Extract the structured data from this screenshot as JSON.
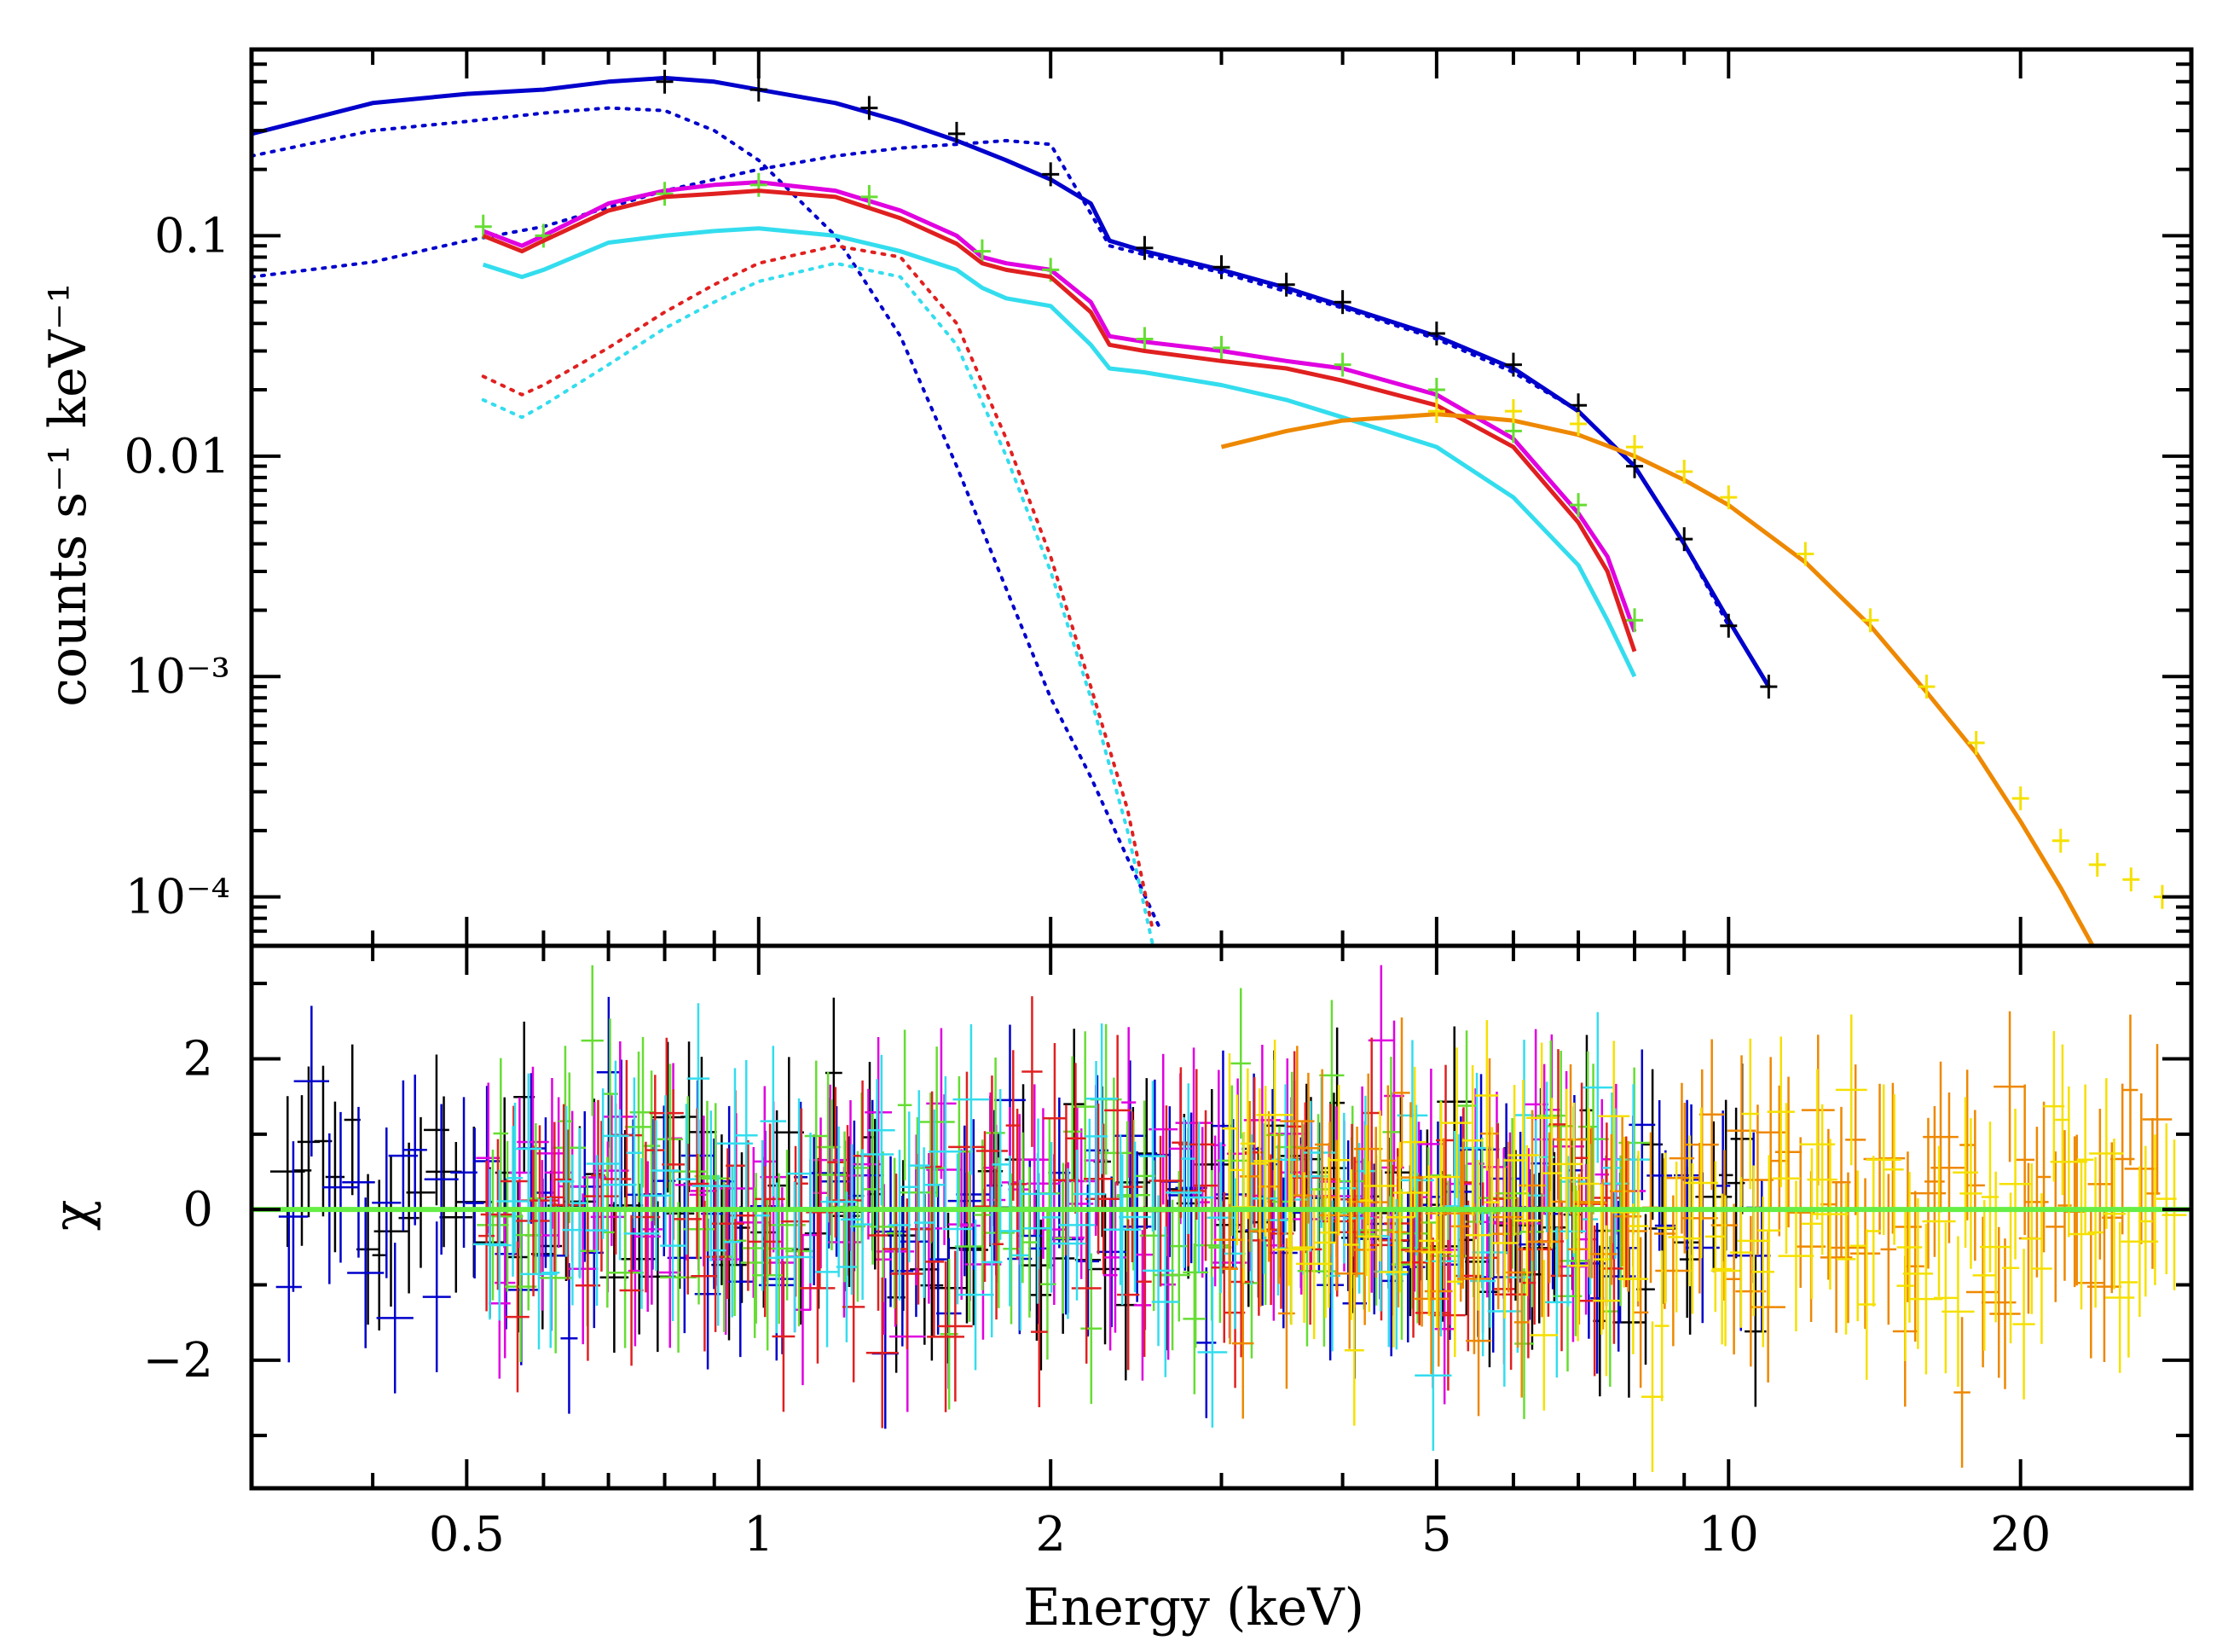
{
  "chart_data": [
    {
      "panel": "spectrum",
      "type": "line",
      "yscale": "log",
      "xscale": "log",
      "ylabel": "counts s⁻¹ keV⁻¹",
      "xlabel": "Energy (keV)",
      "xlim": [
        0.3,
        30
      ],
      "ylim": [
        6e-05,
        0.7
      ],
      "y_tick_values": [
        0.1,
        0.01,
        0.001,
        0.0001
      ],
      "y_tick_labels": [
        "0.1",
        "0.01",
        "10⁻³",
        "10⁻⁴"
      ],
      "x_tick_values": [
        0.5,
        1,
        2,
        5,
        10,
        20
      ],
      "x_tick_labels": [
        "0.5",
        "1",
        "2",
        "5",
        "10",
        "20"
      ],
      "series": [
        {
          "name": "blue model",
          "color": "#0000cc",
          "style": "solid",
          "x": [
            0.3,
            0.4,
            0.5,
            0.6,
            0.7,
            0.8,
            0.9,
            1.0,
            1.2,
            1.4,
            1.6,
            1.8,
            2.0,
            2.2,
            2.3,
            2.5,
            3.0,
            3.5,
            4.0,
            5.0,
            6.0,
            7.0,
            8.0,
            9.0,
            10.0,
            11.0
          ],
          "y": [
            0.29,
            0.4,
            0.44,
            0.46,
            0.5,
            0.52,
            0.5,
            0.46,
            0.4,
            0.33,
            0.27,
            0.22,
            0.18,
            0.14,
            0.095,
            0.085,
            0.07,
            0.058,
            0.048,
            0.035,
            0.025,
            0.016,
            0.009,
            0.004,
            0.0018,
            0.0009
          ]
        },
        {
          "name": "black data",
          "color": "#000000",
          "style": "points",
          "x": [
            0.8,
            1.0,
            1.3,
            1.6,
            2.0,
            2.5,
            3.0,
            3.5,
            4.0,
            5.0,
            6.0,
            7.0,
            8.0,
            9.0,
            10.0,
            11.0
          ],
          "y": [
            0.5,
            0.46,
            0.38,
            0.29,
            0.19,
            0.088,
            0.072,
            0.06,
            0.05,
            0.036,
            0.026,
            0.017,
            0.009,
            0.0042,
            0.0017,
            0.0009
          ]
        },
        {
          "name": "blue component 1",
          "color": "#0000cc",
          "style": "dotted",
          "x": [
            0.3,
            0.4,
            0.5,
            0.6,
            0.7,
            0.8,
            0.9,
            1.0,
            1.2,
            1.4,
            1.6,
            1.8,
            2.0,
            2.2,
            2.4,
            2.6
          ],
          "y": [
            0.23,
            0.3,
            0.33,
            0.36,
            0.38,
            0.37,
            0.3,
            0.22,
            0.1,
            0.035,
            0.009,
            0.0025,
            0.0008,
            0.00035,
            0.00015,
            7e-05
          ]
        },
        {
          "name": "blue component 2",
          "color": "#0000cc",
          "style": "dotted",
          "x": [
            0.3,
            0.4,
            0.5,
            0.6,
            0.8,
            1.0,
            1.2,
            1.4,
            1.6,
            1.8,
            2.0,
            2.3,
            2.5,
            3.0,
            4.0,
            5.0,
            6.0,
            7.0,
            8.0,
            9.0,
            10.0
          ],
          "y": [
            0.065,
            0.076,
            0.095,
            0.11,
            0.16,
            0.2,
            0.23,
            0.25,
            0.26,
            0.27,
            0.26,
            0.09,
            0.082,
            0.068,
            0.047,
            0.034,
            0.024,
            0.016,
            0.009,
            0.004,
            0.0017
          ]
        },
        {
          "name": "magenta model",
          "color": "#e000e0",
          "style": "solid",
          "x": [
            0.52,
            0.57,
            0.6,
            0.7,
            0.8,
            0.9,
            1.0,
            1.2,
            1.4,
            1.6,
            1.7,
            1.8,
            2.0,
            2.2,
            2.3,
            2.5,
            3.0,
            3.5,
            4.0,
            5.0,
            6.0,
            7.0,
            7.5,
            8.0
          ],
          "y": [
            0.105,
            0.09,
            0.1,
            0.14,
            0.16,
            0.17,
            0.175,
            0.16,
            0.13,
            0.1,
            0.08,
            0.075,
            0.07,
            0.05,
            0.035,
            0.033,
            0.03,
            0.027,
            0.025,
            0.019,
            0.012,
            0.0055,
            0.0035,
            0.0016
          ]
        },
        {
          "name": "green data",
          "color": "#66dd33",
          "style": "points",
          "x": [
            0.52,
            0.6,
            0.8,
            1.0,
            1.3,
            1.7,
            2.0,
            2.5,
            3.0,
            4.0,
            5.0,
            6.0,
            7.0,
            8.0
          ],
          "y": [
            0.11,
            0.1,
            0.155,
            0.17,
            0.15,
            0.085,
            0.07,
            0.034,
            0.031,
            0.026,
            0.02,
            0.013,
            0.006,
            0.0018
          ]
        },
        {
          "name": "red model",
          "color": "#e02020",
          "style": "solid",
          "x": [
            0.52,
            0.57,
            0.6,
            0.7,
            0.8,
            0.9,
            1.0,
            1.2,
            1.4,
            1.6,
            1.7,
            1.8,
            2.0,
            2.2,
            2.3,
            2.5,
            3.0,
            3.5,
            4.0,
            5.0,
            6.0,
            7.0,
            7.5,
            8.0
          ],
          "y": [
            0.1,
            0.085,
            0.095,
            0.13,
            0.15,
            0.155,
            0.16,
            0.15,
            0.12,
            0.092,
            0.075,
            0.07,
            0.065,
            0.045,
            0.032,
            0.03,
            0.027,
            0.025,
            0.022,
            0.017,
            0.011,
            0.005,
            0.003,
            0.0013
          ]
        },
        {
          "name": "red component",
          "color": "#e02020",
          "style": "dotted",
          "x": [
            0.52,
            0.57,
            0.6,
            0.7,
            0.8,
            0.9,
            1.0,
            1.2,
            1.4,
            1.6,
            1.8,
            2.0,
            2.2,
            2.4,
            2.55
          ],
          "y": [
            0.023,
            0.019,
            0.021,
            0.031,
            0.045,
            0.06,
            0.075,
            0.09,
            0.08,
            0.04,
            0.012,
            0.0035,
            0.0009,
            0.00025,
            7e-05
          ]
        },
        {
          "name": "cyan model",
          "color": "#33ddee",
          "style": "solid",
          "x": [
            0.52,
            0.57,
            0.6,
            0.7,
            0.8,
            0.9,
            1.0,
            1.2,
            1.4,
            1.6,
            1.7,
            1.8,
            2.0,
            2.2,
            2.3,
            2.5,
            3.0,
            3.5,
            4.0,
            5.0,
            6.0,
            7.0,
            7.5,
            8.0
          ],
          "y": [
            0.074,
            0.065,
            0.07,
            0.093,
            0.1,
            0.105,
            0.108,
            0.1,
            0.085,
            0.07,
            0.058,
            0.052,
            0.048,
            0.032,
            0.025,
            0.024,
            0.021,
            0.018,
            0.015,
            0.011,
            0.0065,
            0.0032,
            0.0018,
            0.001
          ]
        },
        {
          "name": "cyan component",
          "color": "#33ddee",
          "style": "dotted",
          "x": [
            0.52,
            0.57,
            0.6,
            0.7,
            0.8,
            0.9,
            1.0,
            1.2,
            1.4,
            1.6,
            1.8,
            2.0,
            2.2,
            2.4,
            2.55
          ],
          "y": [
            0.018,
            0.015,
            0.017,
            0.026,
            0.038,
            0.05,
            0.062,
            0.075,
            0.065,
            0.032,
            0.01,
            0.003,
            0.0008,
            0.0002,
            6e-05
          ]
        },
        {
          "name": "orange model",
          "color": "#ee8800",
          "style": "solid",
          "x": [
            3.0,
            3.5,
            4.0,
            4.5,
            5.0,
            5.5,
            6.0,
            7.0,
            8.0,
            9.0,
            10.0,
            12.0,
            14.0,
            16.0,
            18.0,
            20.0,
            22.0,
            24.0
          ],
          "y": [
            0.011,
            0.013,
            0.0145,
            0.015,
            0.0155,
            0.015,
            0.0145,
            0.0125,
            0.01,
            0.0078,
            0.006,
            0.0033,
            0.0017,
            0.00085,
            0.00045,
            0.00022,
            0.00011,
            5.5e-05
          ]
        },
        {
          "name": "yellow data",
          "color": "#f5e000",
          "style": "points",
          "x": [
            5.0,
            6.0,
            7.0,
            8.0,
            9.0,
            10.0,
            12.0,
            14.0,
            16.0,
            18.0,
            20.0,
            22.0,
            24.0,
            26.0,
            28.0
          ],
          "y": [
            0.016,
            0.016,
            0.014,
            0.011,
            0.0085,
            0.0065,
            0.0036,
            0.0018,
            0.0009,
            0.0005,
            0.00028,
            0.00018,
            0.00014,
            0.00012,
            0.0001
          ]
        }
      ]
    },
    {
      "panel": "residuals",
      "type": "scatter",
      "ylabel": "χ",
      "xlabel": "Energy (keV)",
      "xlim": [
        0.3,
        30
      ],
      "ylim": [
        -3.7,
        3.5
      ],
      "y_tick_values": [
        2,
        0,
        -2
      ],
      "y_tick_labels": [
        "2",
        "0",
        "−2"
      ],
      "zero_line_color": "#66ee44",
      "note": "Residuals scattered between about -3 and +3 for all datasets over 0.3-30 keV"
    }
  ]
}
